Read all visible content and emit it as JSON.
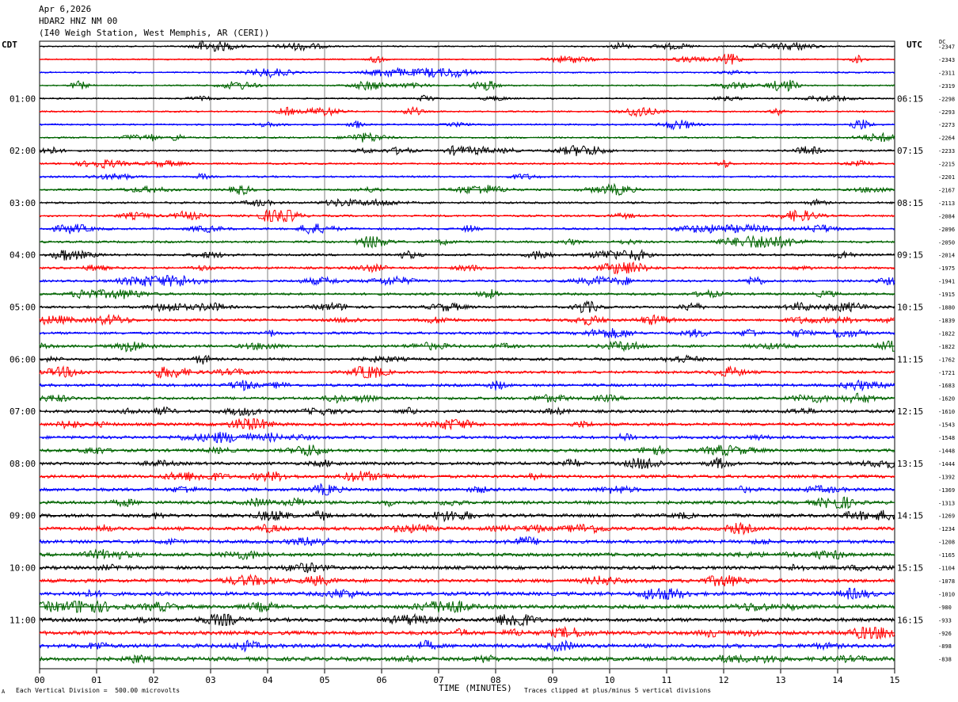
{
  "header": {
    "date": "Apr 6,2026",
    "station": "HDAR2 HNZ NM 00",
    "location": "(I40 Weigh Station, West Memphis, AR (CERI))"
  },
  "left_axis_label": "CDT",
  "right_axis_label": "UTC",
  "dc_label": "DC",
  "footer": {
    "mark": "A",
    "scale_note": "Each Vertical Division =  500.00 microvolts",
    "xlabel": "TIME (MINUTES)",
    "clip_note": "Traces clipped at plus/minus 5 vertical divisions"
  },
  "colors": {
    "trace_cycle": [
      "#000000",
      "#ff0000",
      "#0000ff",
      "#006400"
    ],
    "grid": "#808080"
  },
  "chart_data": {
    "type": "line",
    "title": "",
    "xlabel": "TIME (MINUTES)",
    "xlim": [
      0,
      15
    ],
    "x_ticks": [
      "00",
      "01",
      "02",
      "03",
      "04",
      "05",
      "06",
      "07",
      "08",
      "09",
      "10",
      "11",
      "12",
      "13",
      "14",
      "15"
    ],
    "rows_per_hour": 4,
    "local_time_labels": [
      "01:00",
      "02:00",
      "03:00",
      "04:00",
      "05:00",
      "06:00",
      "07:00",
      "08:00",
      "09:00",
      "10:00",
      "11:00"
    ],
    "utc_time_labels": [
      "06:15",
      "07:15",
      "08:15",
      "09:15",
      "10:15",
      "11:15",
      "12:15",
      "13:15",
      "14:15",
      "15:15",
      "16:15"
    ],
    "dc_offsets": [
      -2347,
      -2343,
      -2311,
      -2319,
      -2298,
      -2293,
      -2273,
      -2264,
      -2233,
      -2215,
      -2201,
      -2167,
      -2113,
      -2084,
      -2096,
      -2050,
      -2014,
      -1975,
      -1941,
      -1915,
      -1880,
      -1839,
      -1822,
      -1822,
      -1762,
      -1721,
      -1683,
      -1620,
      -1610,
      -1543,
      -1548,
      -1448,
      -1444,
      -1392,
      -1369,
      -1313,
      -1269,
      -1234,
      -1208,
      -1165,
      -1104,
      -1078,
      -1010,
      -980,
      -933,
      -926,
      -898,
      -838
    ],
    "grid": true
  }
}
